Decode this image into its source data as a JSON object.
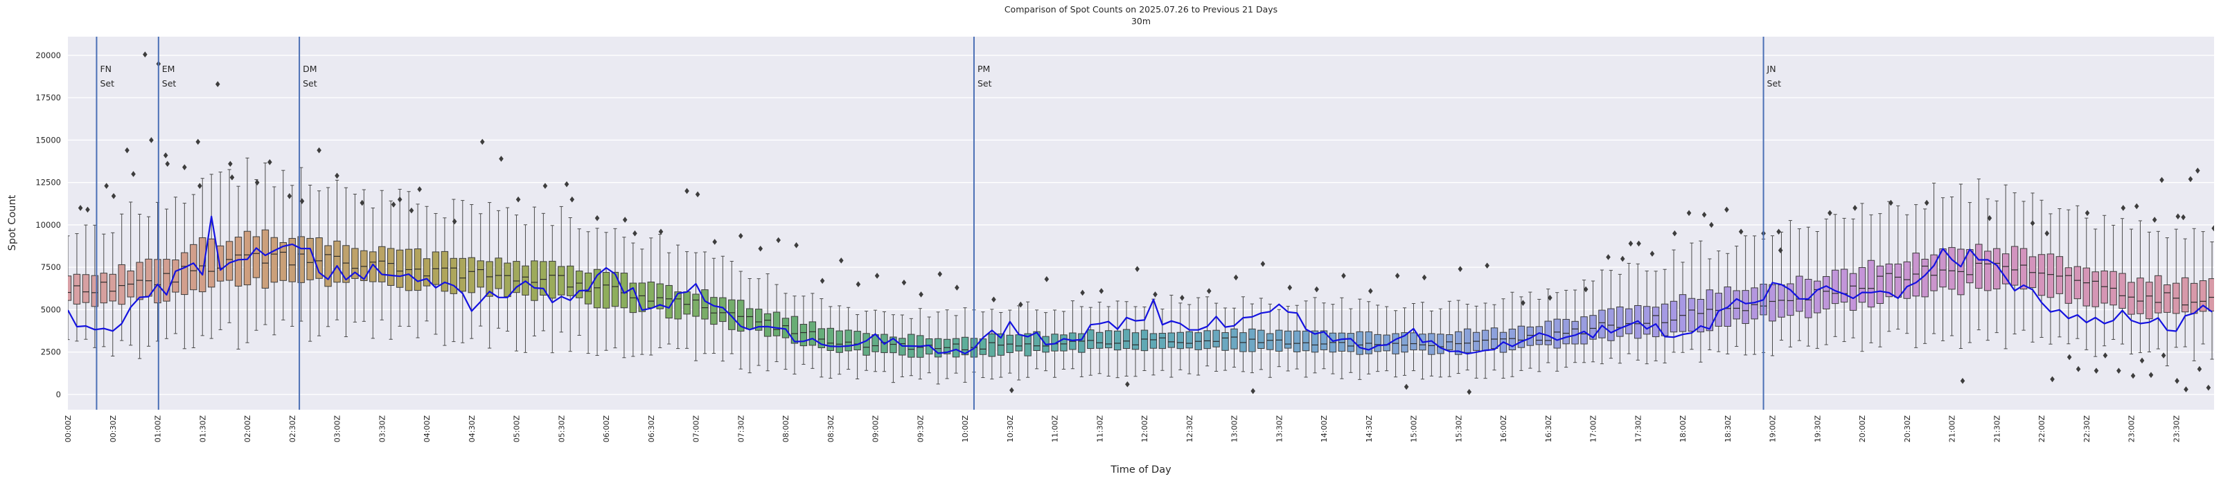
{
  "chart_data": {
    "type": "boxplot+line",
    "title": "Comparison of Spot Counts on 2025.07.26 to Previous 21 Days",
    "subtitle": "30m",
    "xlabel": "Time of Day",
    "ylabel": "Spot Count",
    "ylim": [
      -900,
      21100
    ],
    "yticks": [
      0,
      2500,
      5000,
      7500,
      10000,
      12500,
      15000,
      17500,
      20000
    ],
    "xtick_labels": [
      "00:00Z",
      "00:30Z",
      "01:00Z",
      "01:30Z",
      "02:00Z",
      "02:30Z",
      "03:00Z",
      "03:30Z",
      "04:00Z",
      "04:30Z",
      "05:00Z",
      "05:30Z",
      "06:00Z",
      "06:30Z",
      "07:00Z",
      "07:30Z",
      "08:00Z",
      "08:30Z",
      "09:00Z",
      "09:30Z",
      "10:00Z",
      "10:30Z",
      "11:00Z",
      "11:30Z",
      "12:00Z",
      "12:30Z",
      "13:00Z",
      "13:30Z",
      "14:00Z",
      "14:30Z",
      "15:00Z",
      "15:30Z",
      "16:00Z",
      "16:30Z",
      "17:00Z",
      "17:30Z",
      "18:00Z",
      "18:30Z",
      "19:00Z",
      "19:30Z",
      "20:00Z",
      "20:30Z",
      "21:00Z",
      "21:30Z",
      "22:00Z",
      "22:30Z",
      "23:00Z",
      "23:30Z"
    ],
    "bin_minutes": 6,
    "bins_per_labeled_tick": 5,
    "grid": "horizontal white gridlines on lavender plot background",
    "legend": null,
    "event_lines": [
      {
        "name": "FN",
        "line2": "Set",
        "time_h": 0.32
      },
      {
        "name": "EM",
        "line2": "Set",
        "time_h": 1.01
      },
      {
        "name": "DM",
        "line2": "Set",
        "time_h": 2.58
      },
      {
        "name": "PM",
        "line2": "Set",
        "time_h": 10.1
      },
      {
        "name": "JN",
        "line2": "Set",
        "time_h": 18.9
      }
    ],
    "anchor_step_h": 0.5,
    "box_median": [
      6200,
      6400,
      6600,
      7600,
      8000,
      8100,
      7800,
      7500,
      7300,
      7100,
      6900,
      6700,
      6200,
      5800,
      5300,
      4700,
      3900,
      3200,
      2900,
      2800,
      2800,
      2900,
      3000,
      3100,
      3100,
      3200,
      3200,
      3100,
      3100,
      3000,
      3000,
      3000,
      3100,
      3400,
      3900,
      4300,
      4700,
      5100,
      5500,
      5900,
      6400,
      7000,
      7400,
      7500,
      7100,
      6500,
      5900,
      5600,
      5800
    ],
    "box_q1": [
      5300,
      5400,
      5600,
      6300,
      6600,
      6700,
      6600,
      6400,
      6200,
      6100,
      5900,
      5700,
      5300,
      4900,
      4400,
      3900,
      3200,
      2700,
      2400,
      2300,
      2300,
      2400,
      2500,
      2600,
      2600,
      2700,
      2700,
      2600,
      2600,
      2500,
      2500,
      2500,
      2600,
      2800,
      3200,
      3500,
      3800,
      4200,
      4500,
      4900,
      5300,
      5800,
      6200,
      6300,
      6000,
      5400,
      4800,
      4600,
      4800
    ],
    "box_q3": [
      7000,
      7300,
      7800,
      9000,
      9400,
      9300,
      8800,
      8500,
      8300,
      8000,
      7800,
      7600,
      7100,
      6600,
      6100,
      5400,
      4600,
      3800,
      3500,
      3400,
      3400,
      3500,
      3600,
      3700,
      3700,
      3800,
      3800,
      3700,
      3700,
      3600,
      3600,
      3700,
      3800,
      4200,
      4700,
      5200,
      5700,
      6200,
      6600,
      7000,
      7500,
      8100,
      8500,
      8600,
      8200,
      7500,
      6900,
      6600,
      6900
    ],
    "whisker_low": [
      2400,
      2700,
      3000,
      3400,
      3600,
      3700,
      3900,
      4000,
      3600,
      3400,
      3100,
      3000,
      2800,
      2500,
      2200,
      1900,
      1500,
      1300,
      1100,
      1000,
      1000,
      1100,
      1200,
      1300,
      1300,
      1400,
      1400,
      1300,
      1300,
      1200,
      1200,
      1200,
      1300,
      1500,
      1800,
      2000,
      2200,
      2500,
      2700,
      2900,
      3100,
      3300,
      3500,
      3500,
      3300,
      2900,
      2500,
      2200,
      2400
    ],
    "whisker_high": [
      9600,
      10200,
      11300,
      12600,
      13100,
      13000,
      12000,
      11500,
      11200,
      10800,
      10600,
      10400,
      9700,
      9000,
      8300,
      7300,
      6300,
      5300,
      4900,
      4800,
      4800,
      5000,
      5200,
      5400,
      5400,
      5500,
      5500,
      5400,
      5400,
      5200,
      5200,
      5400,
      5500,
      6100,
      6800,
      7500,
      8200,
      8900,
      9500,
      10000,
      10700,
      11400,
      11900,
      12000,
      11400,
      10500,
      9700,
      9300,
      9700
    ],
    "today_line": [
      4600,
      3800,
      6200,
      7600,
      7900,
      8500,
      7000,
      7300,
      7200,
      5300,
      6500,
      5600,
      7400,
      5000,
      6100,
      4300,
      3500,
      2800,
      3300,
      2700,
      2600,
      4000,
      3100,
      3900,
      4700,
      3900,
      4400,
      5200,
      3600,
      2900,
      3600,
      2400,
      3100,
      3400,
      3700,
      4300,
      3400,
      4800,
      6500,
      5900,
      5700,
      6400,
      8300,
      7300,
      5500,
      4200,
      4600,
      4000,
      5500
    ],
    "line_spikes": [
      [
        1.6,
        10500
      ],
      [
        12.1,
        5600
      ],
      [
        20.9,
        8600
      ]
    ],
    "outliers": [
      [
        0.14,
        11000
      ],
      [
        0.22,
        10900
      ],
      [
        0.43,
        12300
      ],
      [
        0.51,
        11700
      ],
      [
        0.66,
        14400
      ],
      [
        0.73,
        13000
      ],
      [
        0.86,
        20050
      ],
      [
        0.93,
        15000
      ],
      [
        1.01,
        19500
      ],
      [
        1.09,
        14100
      ],
      [
        1.11,
        13600
      ],
      [
        1.3,
        13400
      ],
      [
        1.45,
        14900
      ],
      [
        1.47,
        12300
      ],
      [
        1.67,
        18300
      ],
      [
        1.81,
        13600
      ],
      [
        1.83,
        12800
      ],
      [
        2.11,
        12500
      ],
      [
        2.25,
        13700
      ],
      [
        2.47,
        11700
      ],
      [
        2.61,
        11400
      ],
      [
        2.8,
        14400
      ],
      [
        3.0,
        12900
      ],
      [
        3.28,
        11300
      ],
      [
        3.63,
        11200
      ],
      [
        3.7,
        11500
      ],
      [
        3.83,
        10850
      ],
      [
        3.92,
        12100
      ],
      [
        4.31,
        10200
      ],
      [
        4.62,
        14900
      ],
      [
        4.83,
        13900
      ],
      [
        5.02,
        11500
      ],
      [
        5.32,
        12300
      ],
      [
        5.56,
        12400
      ],
      [
        5.62,
        11500
      ],
      [
        5.9,
        10400
      ],
      [
        6.21,
        10300
      ],
      [
        6.32,
        9500
      ],
      [
        6.61,
        9600
      ],
      [
        6.9,
        12000
      ],
      [
        7.02,
        11800
      ],
      [
        7.21,
        9000
      ],
      [
        7.5,
        9350
      ],
      [
        7.72,
        8600
      ],
      [
        7.92,
        9100
      ],
      [
        8.12,
        8800
      ],
      [
        8.41,
        6700
      ],
      [
        8.62,
        7900
      ],
      [
        8.81,
        6500
      ],
      [
        9.02,
        7000
      ],
      [
        9.32,
        6600
      ],
      [
        9.51,
        5900
      ],
      [
        9.72,
        7100
      ],
      [
        9.91,
        6300
      ],
      [
        10.32,
        5600
      ],
      [
        10.52,
        250
      ],
      [
        10.62,
        5300
      ],
      [
        10.91,
        6800
      ],
      [
        11.31,
        6000
      ],
      [
        11.52,
        6100
      ],
      [
        11.81,
        600
      ],
      [
        11.92,
        7400
      ],
      [
        12.12,
        5900
      ],
      [
        12.42,
        5700
      ],
      [
        12.72,
        6100
      ],
      [
        13.02,
        6900
      ],
      [
        13.21,
        200
      ],
      [
        13.32,
        7700
      ],
      [
        13.62,
        6300
      ],
      [
        13.92,
        6200
      ],
      [
        14.22,
        7000
      ],
      [
        14.52,
        6100
      ],
      [
        14.82,
        7000
      ],
      [
        14.92,
        450
      ],
      [
        15.12,
        6900
      ],
      [
        15.52,
        7400
      ],
      [
        15.62,
        150
      ],
      [
        15.82,
        7600
      ],
      [
        16.22,
        5400
      ],
      [
        16.52,
        5700
      ],
      [
        16.92,
        6200
      ],
      [
        17.17,
        8100
      ],
      [
        17.33,
        8000
      ],
      [
        17.42,
        8900
      ],
      [
        17.51,
        8900
      ],
      [
        17.66,
        8300
      ],
      [
        17.91,
        9500
      ],
      [
        18.07,
        10700
      ],
      [
        18.24,
        10600
      ],
      [
        18.32,
        10000
      ],
      [
        18.49,
        10900
      ],
      [
        18.65,
        9600
      ],
      [
        18.9,
        9500
      ],
      [
        19.07,
        9600
      ],
      [
        19.09,
        8500
      ],
      [
        19.64,
        10700
      ],
      [
        19.92,
        11000
      ],
      [
        20.32,
        11300
      ],
      [
        20.72,
        11300
      ],
      [
        21.12,
        800
      ],
      [
        21.42,
        10400
      ],
      [
        21.9,
        10100
      ],
      [
        22.06,
        9500
      ],
      [
        22.12,
        900
      ],
      [
        22.31,
        2200
      ],
      [
        22.41,
        1500
      ],
      [
        22.51,
        10700
      ],
      [
        22.61,
        1400
      ],
      [
        22.71,
        2300
      ],
      [
        22.86,
        1400
      ],
      [
        22.91,
        11000
      ],
      [
        23.02,
        1100
      ],
      [
        23.06,
        11100
      ],
      [
        23.12,
        2000
      ],
      [
        23.22,
        1150
      ],
      [
        23.26,
        10300
      ],
      [
        23.34,
        12650
      ],
      [
        23.36,
        2300
      ],
      [
        23.51,
        800
      ],
      [
        23.52,
        10500
      ],
      [
        23.58,
        10450
      ],
      [
        23.61,
        300
      ],
      [
        23.66,
        12700
      ],
      [
        23.74,
        13200
      ],
      [
        23.76,
        1500
      ],
      [
        23.86,
        400
      ],
      [
        23.92,
        9800
      ]
    ],
    "palette_anchors_every_2h": [
      "#d8a0a6",
      "#cf9f7f",
      "#b2a45c",
      "#8fae5b",
      "#68ad72",
      "#5ead9a",
      "#5fa9b4",
      "#78a6cf",
      "#8ea1dd",
      "#a899e4",
      "#c595d8",
      "#d494bb",
      "#d89aa6"
    ],
    "colors": {
      "today_line": "#1412e0",
      "event_line": "#4a6fb5",
      "box_edge": "#3c3c3c",
      "median_line": "#2b2b2b",
      "whisker": "#4a4a4a",
      "outlier": "#3d3d3d",
      "plot_bg": "#eaeaf2",
      "grid": "#ffffff",
      "text": "#262626"
    }
  }
}
